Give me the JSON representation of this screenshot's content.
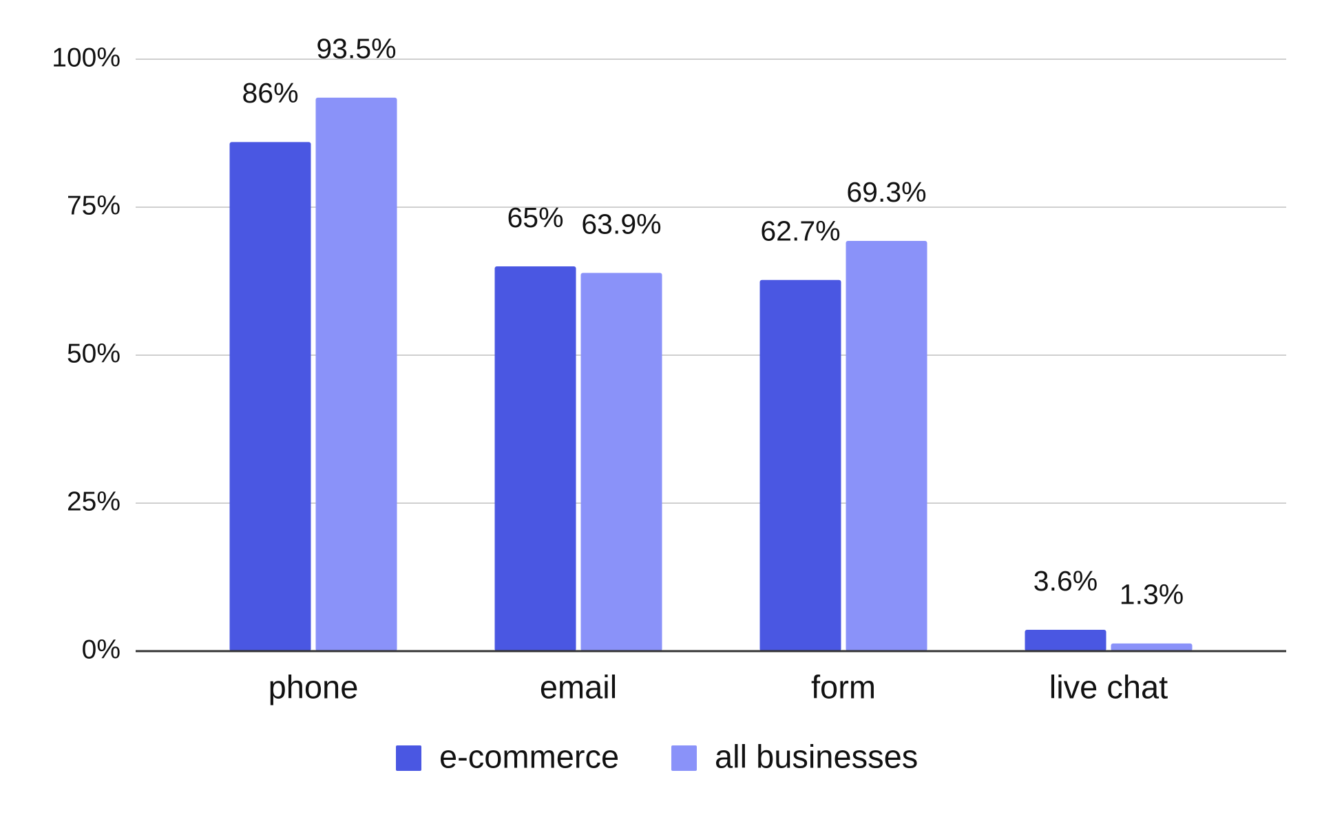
{
  "chart_data": {
    "type": "bar",
    "categories": [
      "phone",
      "email",
      "form",
      "live chat"
    ],
    "series": [
      {
        "name": "e-commerce",
        "color": "#4a57e2",
        "values": [
          86,
          65,
          62.7,
          3.6
        ],
        "value_labels": [
          "86%",
          "65%",
          "62.7%",
          "3.6%"
        ]
      },
      {
        "name": "all businesses",
        "color": "#8a92f9",
        "values": [
          93.5,
          63.9,
          69.3,
          1.3
        ],
        "value_labels": [
          "93.5%",
          "63.9%",
          "69.3%",
          "1.3%"
        ]
      }
    ],
    "ylim": [
      0,
      100
    ],
    "yticks": [
      {
        "value": 0,
        "label": "0%"
      },
      {
        "value": 25,
        "label": "25%"
      },
      {
        "value": 50,
        "label": "50%"
      },
      {
        "value": 75,
        "label": "75%"
      },
      {
        "value": 100,
        "label": "100%"
      }
    ],
    "grid": true,
    "legend": "bottom"
  }
}
